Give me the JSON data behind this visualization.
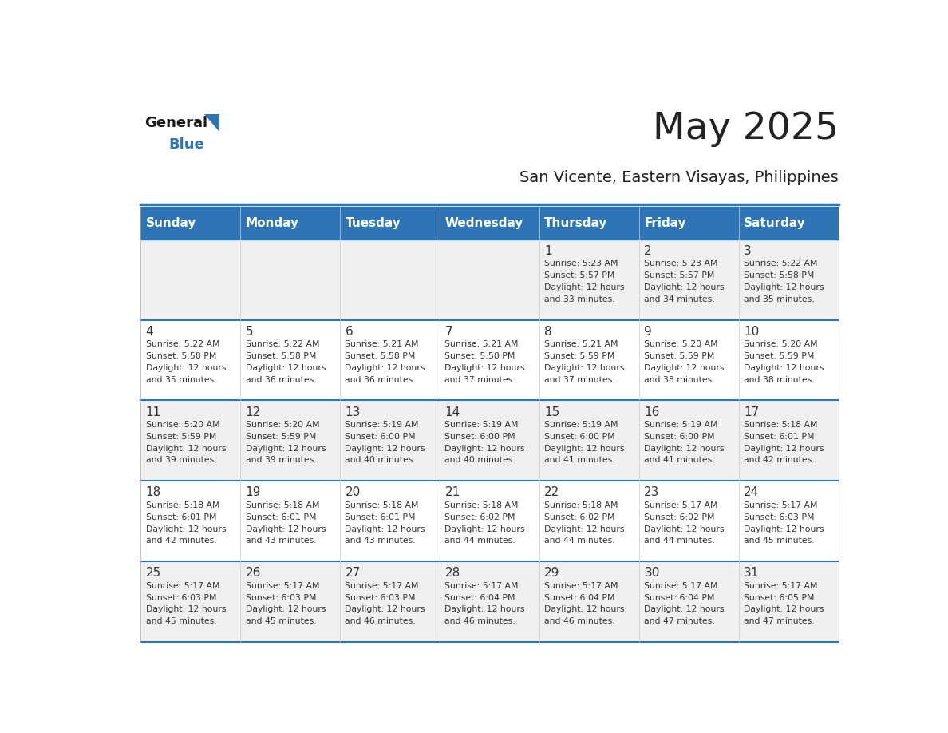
{
  "title": "May 2025",
  "subtitle": "San Vicente, Eastern Visayas, Philippines",
  "days_of_week": [
    "Sunday",
    "Monday",
    "Tuesday",
    "Wednesday",
    "Thursday",
    "Friday",
    "Saturday"
  ],
  "header_bg": "#2E75B6",
  "header_text": "#FFFFFF",
  "row_bg_even": "#F0F0F0",
  "row_bg_odd": "#FFFFFF",
  "divider_color": "#2E75B6",
  "day_num_color": "#333333",
  "text_color": "#333333",
  "title_color": "#222222",
  "subtitle_color": "#222222",
  "calendar": [
    [
      null,
      null,
      null,
      null,
      {
        "day": 1,
        "sunrise": "5:23 AM",
        "sunset": "5:57 PM",
        "daylight": "12 hours and 33 minutes."
      },
      {
        "day": 2,
        "sunrise": "5:23 AM",
        "sunset": "5:57 PM",
        "daylight": "12 hours and 34 minutes."
      },
      {
        "day": 3,
        "sunrise": "5:22 AM",
        "sunset": "5:58 PM",
        "daylight": "12 hours and 35 minutes."
      }
    ],
    [
      {
        "day": 4,
        "sunrise": "5:22 AM",
        "sunset": "5:58 PM",
        "daylight": "12 hours and 35 minutes."
      },
      {
        "day": 5,
        "sunrise": "5:22 AM",
        "sunset": "5:58 PM",
        "daylight": "12 hours and 36 minutes."
      },
      {
        "day": 6,
        "sunrise": "5:21 AM",
        "sunset": "5:58 PM",
        "daylight": "12 hours and 36 minutes."
      },
      {
        "day": 7,
        "sunrise": "5:21 AM",
        "sunset": "5:58 PM",
        "daylight": "12 hours and 37 minutes."
      },
      {
        "day": 8,
        "sunrise": "5:21 AM",
        "sunset": "5:59 PM",
        "daylight": "12 hours and 37 minutes."
      },
      {
        "day": 9,
        "sunrise": "5:20 AM",
        "sunset": "5:59 PM",
        "daylight": "12 hours and 38 minutes."
      },
      {
        "day": 10,
        "sunrise": "5:20 AM",
        "sunset": "5:59 PM",
        "daylight": "12 hours and 38 minutes."
      }
    ],
    [
      {
        "day": 11,
        "sunrise": "5:20 AM",
        "sunset": "5:59 PM",
        "daylight": "12 hours and 39 minutes."
      },
      {
        "day": 12,
        "sunrise": "5:20 AM",
        "sunset": "5:59 PM",
        "daylight": "12 hours and 39 minutes."
      },
      {
        "day": 13,
        "sunrise": "5:19 AM",
        "sunset": "6:00 PM",
        "daylight": "12 hours and 40 minutes."
      },
      {
        "day": 14,
        "sunrise": "5:19 AM",
        "sunset": "6:00 PM",
        "daylight": "12 hours and 40 minutes."
      },
      {
        "day": 15,
        "sunrise": "5:19 AM",
        "sunset": "6:00 PM",
        "daylight": "12 hours and 41 minutes."
      },
      {
        "day": 16,
        "sunrise": "5:19 AM",
        "sunset": "6:00 PM",
        "daylight": "12 hours and 41 minutes."
      },
      {
        "day": 17,
        "sunrise": "5:18 AM",
        "sunset": "6:01 PM",
        "daylight": "12 hours and 42 minutes."
      }
    ],
    [
      {
        "day": 18,
        "sunrise": "5:18 AM",
        "sunset": "6:01 PM",
        "daylight": "12 hours and 42 minutes."
      },
      {
        "day": 19,
        "sunrise": "5:18 AM",
        "sunset": "6:01 PM",
        "daylight": "12 hours and 43 minutes."
      },
      {
        "day": 20,
        "sunrise": "5:18 AM",
        "sunset": "6:01 PM",
        "daylight": "12 hours and 43 minutes."
      },
      {
        "day": 21,
        "sunrise": "5:18 AM",
        "sunset": "6:02 PM",
        "daylight": "12 hours and 44 minutes."
      },
      {
        "day": 22,
        "sunrise": "5:18 AM",
        "sunset": "6:02 PM",
        "daylight": "12 hours and 44 minutes."
      },
      {
        "day": 23,
        "sunrise": "5:17 AM",
        "sunset": "6:02 PM",
        "daylight": "12 hours and 44 minutes."
      },
      {
        "day": 24,
        "sunrise": "5:17 AM",
        "sunset": "6:03 PM",
        "daylight": "12 hours and 45 minutes."
      }
    ],
    [
      {
        "day": 25,
        "sunrise": "5:17 AM",
        "sunset": "6:03 PM",
        "daylight": "12 hours and 45 minutes."
      },
      {
        "day": 26,
        "sunrise": "5:17 AM",
        "sunset": "6:03 PM",
        "daylight": "12 hours and 45 minutes."
      },
      {
        "day": 27,
        "sunrise": "5:17 AM",
        "sunset": "6:03 PM",
        "daylight": "12 hours and 46 minutes."
      },
      {
        "day": 28,
        "sunrise": "5:17 AM",
        "sunset": "6:04 PM",
        "daylight": "12 hours and 46 minutes."
      },
      {
        "day": 29,
        "sunrise": "5:17 AM",
        "sunset": "6:04 PM",
        "daylight": "12 hours and 46 minutes."
      },
      {
        "day": 30,
        "sunrise": "5:17 AM",
        "sunset": "6:04 PM",
        "daylight": "12 hours and 47 minutes."
      },
      {
        "day": 31,
        "sunrise": "5:17 AM",
        "sunset": "6:05 PM",
        "daylight": "12 hours and 47 minutes."
      }
    ]
  ],
  "fig_width": 11.88,
  "fig_height": 9.18
}
